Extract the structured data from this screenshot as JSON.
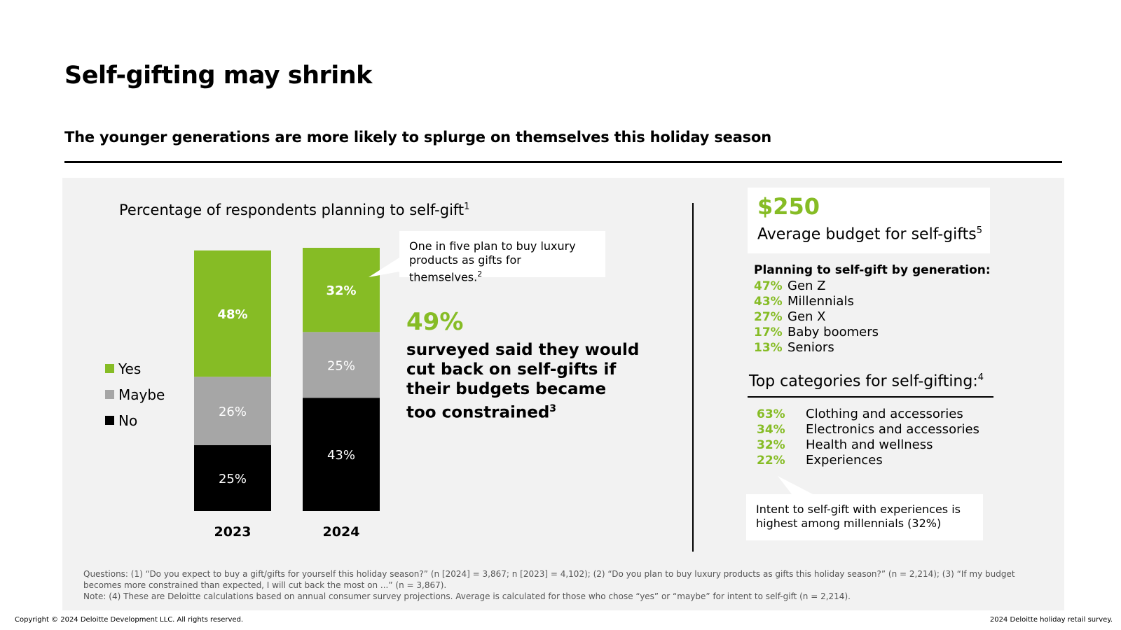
{
  "title": "Self-gifting may shrink",
  "subtitle": "The younger generations are more likely to splurge on themselves this holiday season",
  "chart_heading": "Percentage of respondents planning to self-gift",
  "chart_heading_sup": "1",
  "legend": [
    {
      "label": "Yes",
      "color": "#86bc25"
    },
    {
      "label": "Maybe",
      "color": "#a6a6a6"
    },
    {
      "label": "No",
      "color": "#000000"
    }
  ],
  "chart_data": {
    "type": "bar",
    "stacked": true,
    "title": "Percentage of respondents planning to self-gift",
    "categories": [
      "2023",
      "2024"
    ],
    "series": [
      {
        "name": "No",
        "values": [
          25,
          43
        ],
        "labels": [
          "25%",
          "43%"
        ]
      },
      {
        "name": "Maybe",
        "values": [
          26,
          25
        ],
        "labels": [
          "26%",
          "25%"
        ]
      },
      {
        "name": "Yes",
        "values": [
          48,
          32
        ],
        "labels": [
          "48%",
          "32%"
        ]
      }
    ],
    "ylim": [
      0,
      100
    ],
    "xlabel": "",
    "ylabel": ""
  },
  "callout_luxury": "One in five plan to buy luxury products as gifts for themselves.",
  "callout_luxury_sup": "2",
  "cut_back_stat": {
    "value": "49%",
    "text": "surveyed said they would cut back on self-gifts if their budgets became too constrained",
    "sup": "3"
  },
  "budget": {
    "value": "$250",
    "label": "Average budget for self-gifts",
    "sup": "5"
  },
  "generations": {
    "title": "Planning to self-gift by generation:",
    "items": [
      {
        "pct": "47%",
        "label": "Gen Z"
      },
      {
        "pct": "43%",
        "label": "Millennials"
      },
      {
        "pct": "27%",
        "label": "Gen X"
      },
      {
        "pct": "17%",
        "label": "Baby boomers"
      },
      {
        "pct": "13%",
        "label": "Seniors"
      }
    ]
  },
  "categories": {
    "title": "Top categories for self-gifting:",
    "sup": "4",
    "items": [
      {
        "pct": "63%",
        "label": "Clothing and accessories"
      },
      {
        "pct": "34%",
        "label": "Electronics and accessories"
      },
      {
        "pct": "32%",
        "label": "Health and wellness"
      },
      {
        "pct": "22%",
        "label": "Experiences"
      }
    ]
  },
  "callout_experiences": "Intent to self-gift with experiences is highest among millennials (32%)",
  "notes": {
    "questions": "Questions: (1) “Do you expect to buy a gift/gifts for yourself this holiday season?” (n [2024] = 3,867; n [2023] = 4,102); (2) “Do you plan to buy luxury products as gifts this holiday season?” (n = 2,214); (3) “If my budget becomes more constrained than expected, I will cut back the most on ...” (n = 3,867).",
    "note": "Note: (4) These are Deloitte calculations based on annual consumer survey projections. Average is calculated for those who chose “yes” or “maybe” for intent to self-gift (n = 2,214)."
  },
  "footer": {
    "copyright": "Copyright © 2024 Deloitte Development LLC. All rights reserved.",
    "source": "2024 Deloitte holiday retail survey."
  },
  "colors": {
    "accent_green": "#86bc25",
    "maybe_gray": "#a6a6a6",
    "panel_bg": "#f2f2f2"
  }
}
